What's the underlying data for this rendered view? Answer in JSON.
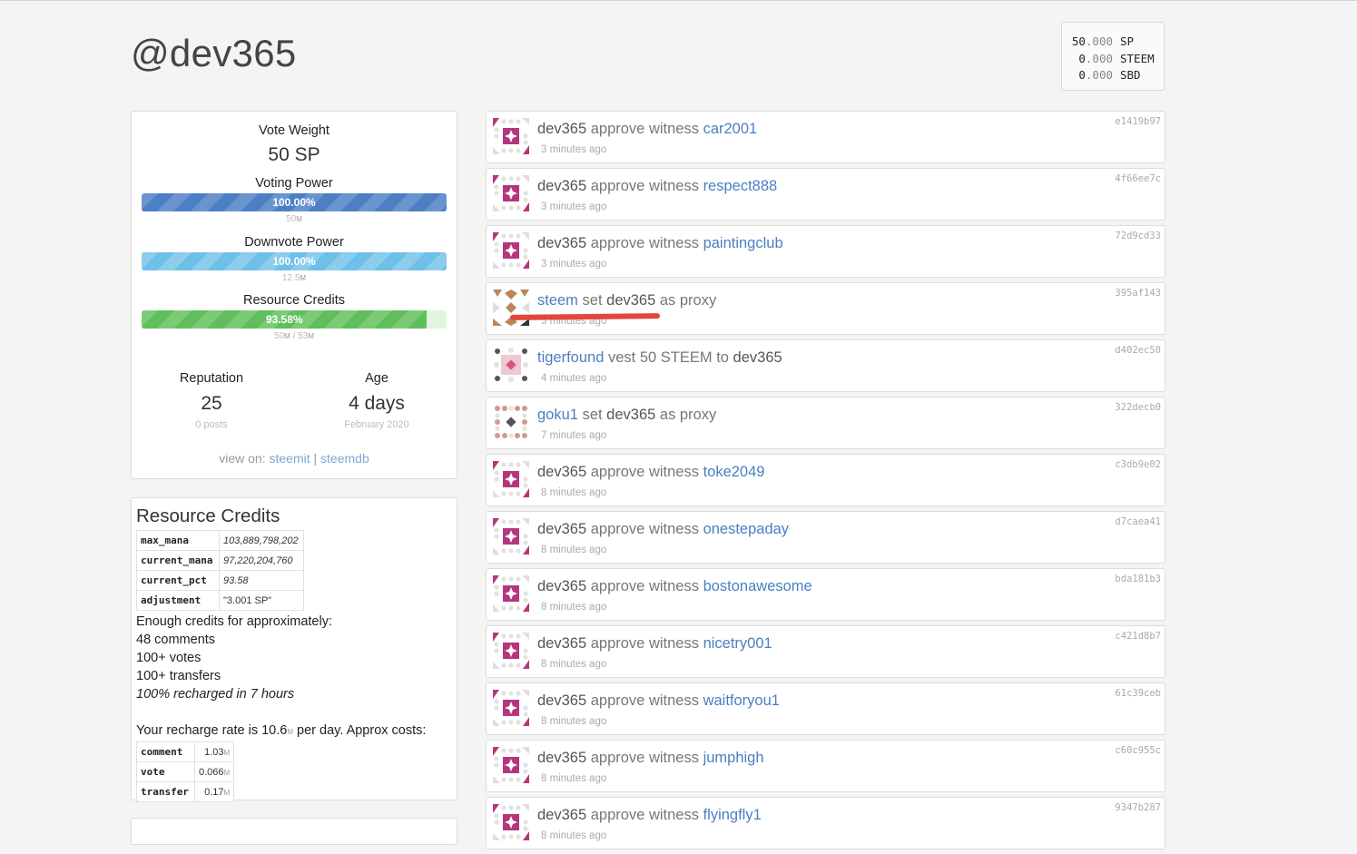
{
  "account": {
    "title": "@dev365"
  },
  "balances": [
    {
      "int": "50",
      "dec": ".000",
      "unit": "SP"
    },
    {
      "int": "0",
      "dec": ".000",
      "unit": "STEEM"
    },
    {
      "int": "0",
      "dec": ".000",
      "unit": "SBD"
    }
  ],
  "stats": {
    "vote_weight_label": "Vote Weight",
    "vote_weight_value": "50 SP",
    "voting_power": {
      "label": "Voting Power",
      "pct_text": "100.00%",
      "fraction": 1.0,
      "sub_value": "50",
      "sub_unit": "M",
      "color": "#4d7fc4"
    },
    "downvote_power": {
      "label": "Downvote Power",
      "pct_text": "100.00%",
      "fraction": 1.0,
      "sub_value": "12.5",
      "sub_unit": "M",
      "color": "#6fc0e8"
    },
    "resource_credits": {
      "label": "Resource Credits",
      "pct_text": "93.58%",
      "fraction": 0.9358,
      "sub_value_a": "50",
      "sub_unit_a": "M",
      "sub_sep": " / ",
      "sub_value_b": "53",
      "sub_unit_b": "M",
      "color": "#5fbf5a"
    },
    "reputation": {
      "label": "Reputation",
      "value": "25",
      "sub": "0 posts"
    },
    "age": {
      "label": "Age",
      "value": "4 days",
      "sub": "February 2020"
    },
    "view_on": {
      "prefix": "view on:",
      "link1": "steemit",
      "sep": "|",
      "link2": "steemdb"
    }
  },
  "rc": {
    "title": "Resource Credits",
    "table": [
      {
        "key": "max_mana",
        "value": "103,889,798,202"
      },
      {
        "key": "current_mana",
        "value": "97,220,204,760"
      },
      {
        "key": "current_pct",
        "value": "93.58"
      },
      {
        "key": "adjustment",
        "value": "\"3.001 SP\""
      }
    ],
    "enough_text": "Enough credits for approximately:",
    "lines": [
      "48 comments",
      "100+ votes",
      "100+ transfers"
    ],
    "recharged_text": "100% recharged in 7 hours",
    "recharge_prefix": "Your recharge rate is 10.6",
    "recharge_unit": "M",
    "recharge_suffix": " per day. Approx costs:",
    "costs": [
      {
        "key": "comment",
        "value": "1.03",
        "unit": "M"
      },
      {
        "key": "vote",
        "value": "0.066",
        "unit": "M"
      },
      {
        "key": "transfer",
        "value": "0.17",
        "unit": "M"
      }
    ]
  },
  "feed": [
    {
      "id": "e1419b97",
      "avatar": "magenta",
      "actor": "dev365",
      "actor_link": false,
      "verb": "approve witness",
      "target": "car2001",
      "target_link": true,
      "suffix": "",
      "time": "3 minutes ago"
    },
    {
      "id": "4f66ee7c",
      "avatar": "magenta",
      "actor": "dev365",
      "actor_link": false,
      "verb": "approve witness",
      "target": "respect888",
      "target_link": true,
      "suffix": "",
      "time": "3 minutes ago"
    },
    {
      "id": "72d9cd33",
      "avatar": "magenta",
      "actor": "dev365",
      "actor_link": false,
      "verb": "approve witness",
      "target": "paintingclub",
      "target_link": true,
      "suffix": "",
      "time": "3 minutes ago"
    },
    {
      "id": "395af143",
      "avatar": "tan",
      "actor": "steem",
      "actor_link": true,
      "verb": "set",
      "target": "dev365",
      "target_link": false,
      "suffix": "as proxy",
      "time": "3 minutes ago",
      "redline": true
    },
    {
      "id": "d402ec50",
      "avatar": "pink",
      "actor": "tigerfound",
      "actor_link": true,
      "verb": "vest 50 STEEM to",
      "target": "dev365",
      "target_link": false,
      "suffix": "",
      "time": "4 minutes ago"
    },
    {
      "id": "322decb0",
      "avatar": "dots",
      "actor": "goku1",
      "actor_link": true,
      "verb": "set",
      "target": "dev365",
      "target_link": false,
      "suffix": "as proxy",
      "time": "7 minutes ago"
    },
    {
      "id": "c3db9e02",
      "avatar": "magenta",
      "actor": "dev365",
      "actor_link": false,
      "verb": "approve witness",
      "target": "toke2049",
      "target_link": true,
      "suffix": "",
      "time": "8 minutes ago"
    },
    {
      "id": "d7caea41",
      "avatar": "magenta",
      "actor": "dev365",
      "actor_link": false,
      "verb": "approve witness",
      "target": "onestepaday",
      "target_link": true,
      "suffix": "",
      "time": "8 minutes ago"
    },
    {
      "id": "bda181b3",
      "avatar": "magenta",
      "actor": "dev365",
      "actor_link": false,
      "verb": "approve witness",
      "target": "bostonawesome",
      "target_link": true,
      "suffix": "",
      "time": "8 minutes ago"
    },
    {
      "id": "c421d8b7",
      "avatar": "magenta",
      "actor": "dev365",
      "actor_link": false,
      "verb": "approve witness",
      "target": "nicetry001",
      "target_link": true,
      "suffix": "",
      "time": "8 minutes ago"
    },
    {
      "id": "61c39ceb",
      "avatar": "magenta",
      "actor": "dev365",
      "actor_link": false,
      "verb": "approve witness",
      "target": "waitforyou1",
      "target_link": true,
      "suffix": "",
      "time": "8 minutes ago"
    },
    {
      "id": "c60c955c",
      "avatar": "magenta",
      "actor": "dev365",
      "actor_link": false,
      "verb": "approve witness",
      "target": "jumphigh",
      "target_link": true,
      "suffix": "",
      "time": "8 minutes ago"
    },
    {
      "id": "9347b287",
      "avatar": "magenta",
      "actor": "dev365",
      "actor_link": false,
      "verb": "approve witness",
      "target": "flyingfly1",
      "target_link": true,
      "suffix": "",
      "time": "8 minutes ago"
    }
  ]
}
